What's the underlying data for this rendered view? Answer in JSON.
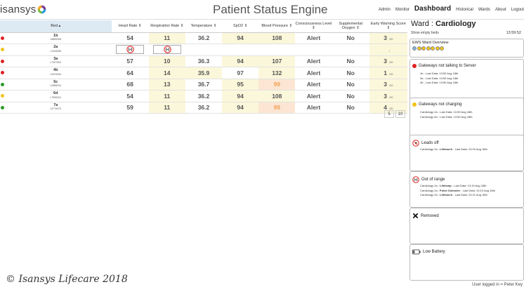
{
  "app": {
    "logo_text": "isansys",
    "title": "Patient Status Engine"
  },
  "nav": [
    {
      "label": "Admin",
      "active": false
    },
    {
      "label": "Monitor",
      "active": false
    },
    {
      "label": "Dashboard",
      "active": true
    },
    {
      "label": "Historical",
      "active": false
    },
    {
      "label": "Wards",
      "active": false
    },
    {
      "label": "About",
      "active": false
    },
    {
      "label": "Logout",
      "active": false
    }
  ],
  "table": {
    "columns": [
      "Bed",
      "Heart Rate",
      "Respiration Rate",
      "Temperature",
      "SpO2",
      "Blood Pressure",
      "Consciousness Level",
      "Supplemental Oxygen",
      "Early Warning Score"
    ],
    "rows": [
      {
        "bed": "1b",
        "id": "L8855308",
        "status": "red",
        "hr": "54",
        "rr": "11",
        "temp": "36.2",
        "spo2": "94",
        "bp": "108",
        "consc": "Alert",
        "o2": "No",
        "ews": "3",
        "ews_max": "/20",
        "oor": false
      },
      {
        "bed": "2a",
        "id": "L1343289",
        "status": "yellow",
        "hr": "",
        "rr": "",
        "temp": "",
        "spo2": "",
        "bp": "",
        "consc": "",
        "o2": "",
        "ews": "",
        "ews_max": "/",
        "oor": true
      },
      {
        "bed": "3a",
        "id": "L7307522",
        "status": "red",
        "hr": "57",
        "rr": "10",
        "temp": "36.3",
        "spo2": "94",
        "bp": "107",
        "consc": "Alert",
        "o2": "No",
        "ews": "3",
        "ews_max": "/20",
        "oor": false
      },
      {
        "bed": "4b",
        "id": "L3223454",
        "status": "red",
        "hr": "64",
        "rr": "14",
        "temp": "35.9",
        "spo2": "97",
        "bp": "132",
        "consc": "Alert",
        "o2": "No",
        "ews": "1",
        "ews_max": "/20",
        "oor": false
      },
      {
        "bed": "5c",
        "id": "L0558224",
        "status": "green",
        "hr": "68",
        "rr": "13",
        "temp": "36.7",
        "spo2": "95",
        "bp": "99",
        "consc": "Alert",
        "o2": "No",
        "ews": "3",
        "ews_max": "/20",
        "oor": false
      },
      {
        "bed": "6d",
        "id": "L7508101",
        "status": "yellow",
        "hr": "54",
        "rr": "11",
        "temp": "36.2",
        "spo2": "94",
        "bp": "108",
        "consc": "Alert",
        "o2": "No",
        "ews": "3",
        "ews_max": "/20",
        "oor": false
      },
      {
        "bed": "7a",
        "id": "L6770670",
        "status": "green",
        "hr": "59",
        "rr": "11",
        "temp": "36.2",
        "spo2": "94",
        "bp": "99",
        "consc": "Alert",
        "o2": "No",
        "ews": "4",
        "ews_max": "/20",
        "oor": false
      }
    ]
  },
  "pager": [
    "5",
    "10"
  ],
  "copyright": "© Isansys Lifecare 2018",
  "ward": {
    "prefix": "Ward : ",
    "name": "Cardiology",
    "show_empty": "Show empty beds",
    "time": "13:59:52",
    "ews_overview": "EWS Ward Overview"
  },
  "cards": {
    "not_talking": {
      "title": "Gateways not talking to Server",
      "lines": [
        "1b - Last Data: 13:59 Aug 18th",
        "3a - Last Data: 13:59 Aug 18th",
        "4b - Last Data: 13:59 Aug 18th"
      ]
    },
    "not_charging": {
      "title": "Gateways not charging",
      "lines": [
        "Cardiology 2a - Last Data: 10:59 Aug 18th",
        "Cardiology 6d - Last Data: 13:50 Aug 18th"
      ]
    },
    "leads_off": {
      "title": "Leads off",
      "lines": [
        {
          "pre": "Cardiology 2a : ",
          "dev": "Lifetouch",
          "post": " - Last Data: 13:20 Aug 18th"
        }
      ]
    },
    "out_of_range": {
      "title": "Out of range",
      "lines": [
        {
          "pre": "Cardiology 2a : ",
          "dev": "Lifetemp",
          "post": " - Last Data: 13:19 Aug 18th"
        },
        {
          "pre": "Cardiology 2a : ",
          "dev": "Pulse Oximeter",
          "post": " - Last Data: 13:19 Aug 18th"
        },
        {
          "pre": "Cardiology 2a : ",
          "dev": "Lifetouch",
          "post": " - Last Data: 13:21 Aug 18th"
        }
      ]
    },
    "removed": {
      "title": "Removed"
    },
    "low_battery": {
      "title": "Low Battery"
    }
  },
  "user_logged": "User logged in = Peter Key",
  "colors": {
    "red": "#e02020",
    "yellow": "#f2c318",
    "green": "#2a9a2a",
    "accent": "#f2a057"
  }
}
